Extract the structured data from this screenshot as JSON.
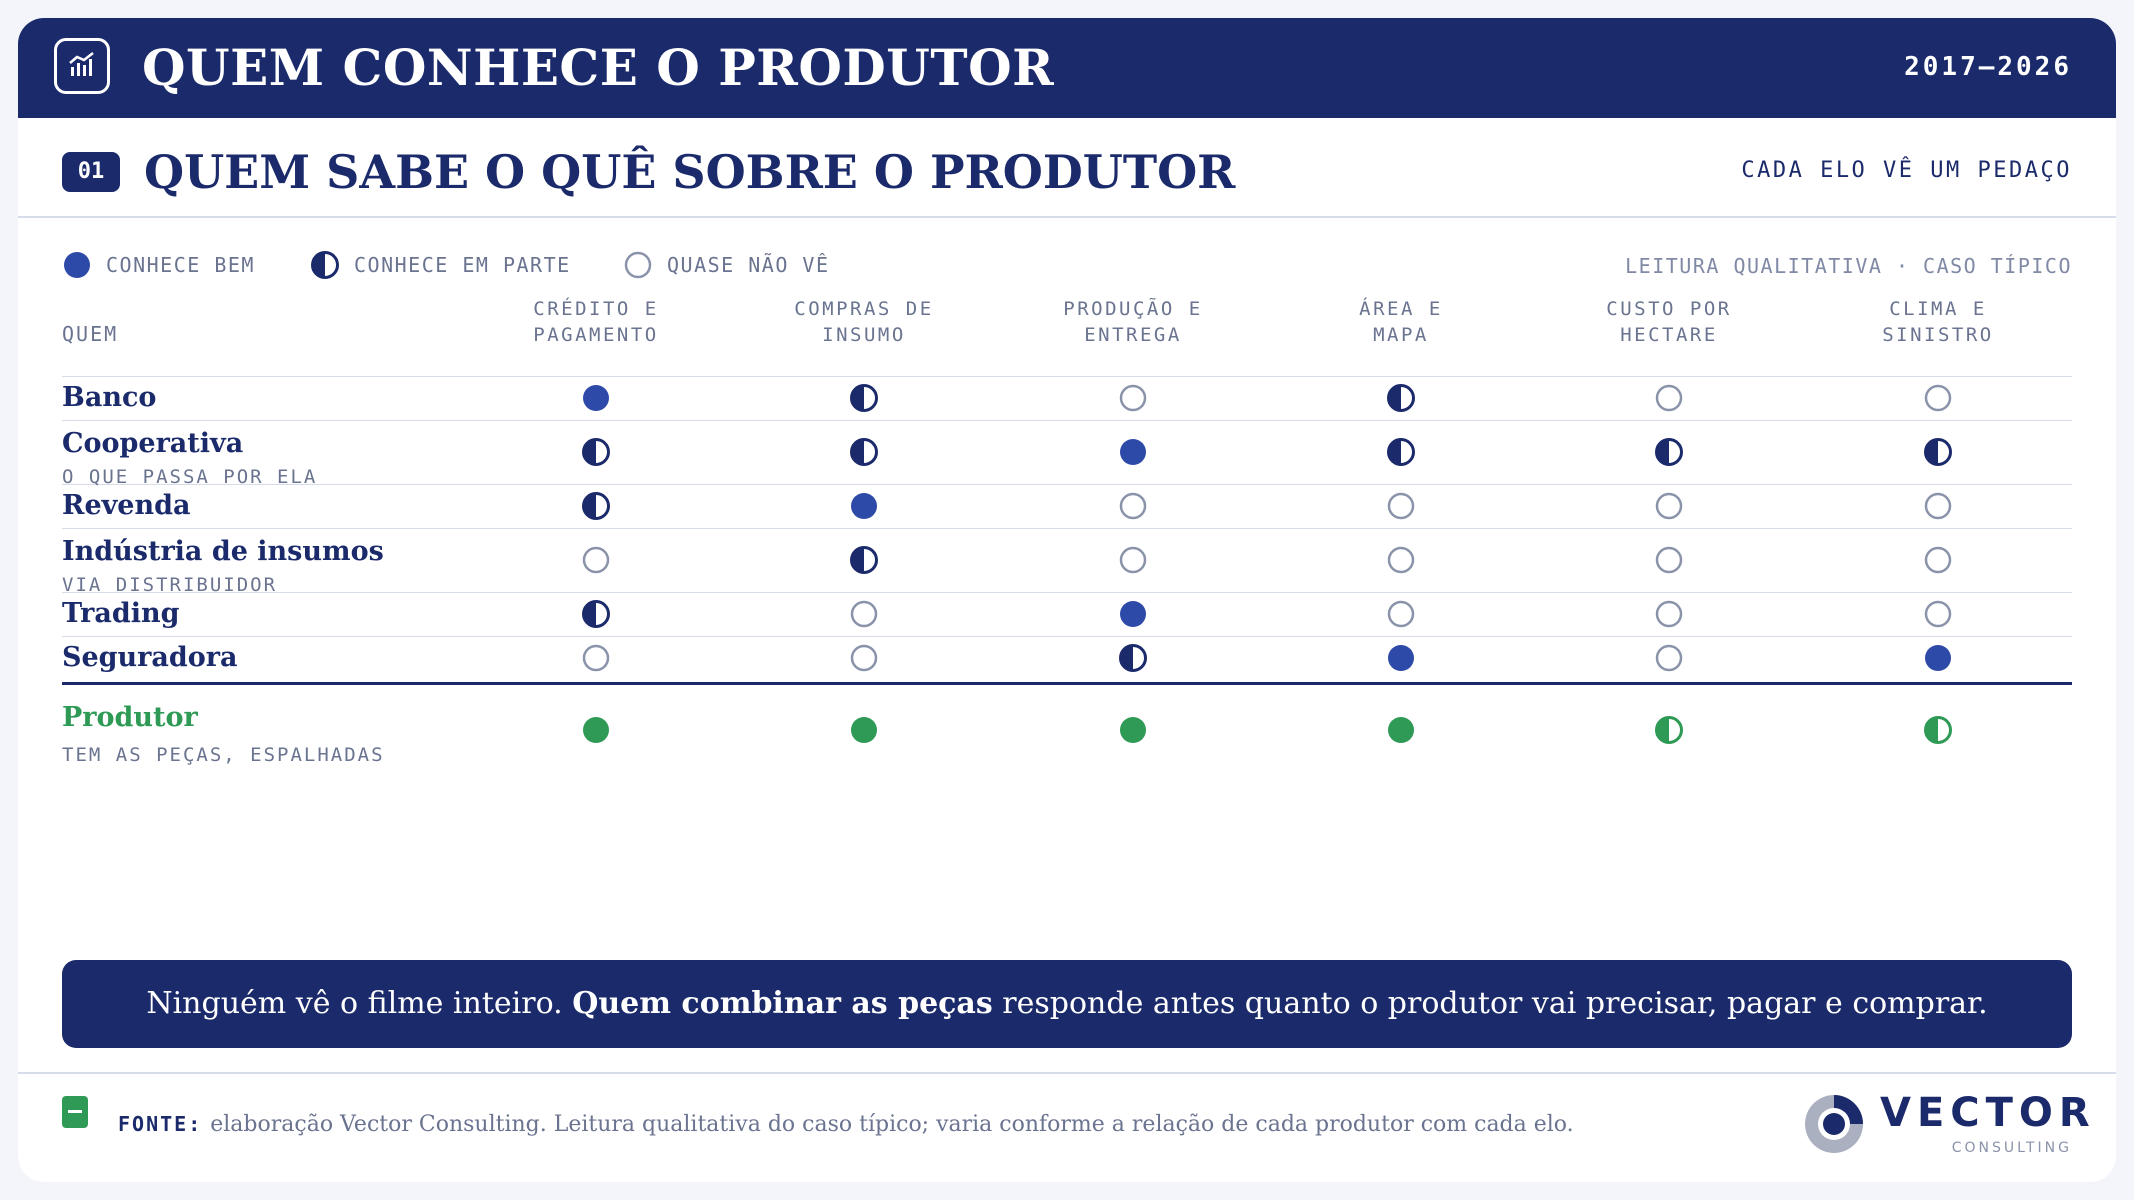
{
  "header": {
    "title": "QUEM CONHECE O PRODUTOR",
    "years": "2017–2026",
    "icon": "chart-icon"
  },
  "section": {
    "badge": "01",
    "title": "QUEM SABE O QUÊ SOBRE O PRODUTOR",
    "subtitle": "CADA ELO VÊ UM PEDAÇO"
  },
  "legend": {
    "full": "CONHECE BEM",
    "half": "CONHECE EM PARTE",
    "empty": "QUASE NÃO VÊ",
    "note": "LEITURA QUALITATIVA · CASO TÍPICO"
  },
  "table": {
    "row_header": "QUEM",
    "columns": [
      [
        "CRÉDITO E",
        "PAGAMENTO"
      ],
      [
        "COMPRAS DE",
        "INSUMO"
      ],
      [
        "PRODUÇÃO E",
        "ENTREGA"
      ],
      [
        "ÁREA E",
        "MAPA"
      ],
      [
        "CUSTO POR",
        "HECTARE"
      ],
      [
        "CLIMA E",
        "SINISTRO"
      ]
    ],
    "rows": [
      {
        "name": "Banco",
        "sub": "",
        "values": [
          "full",
          "half",
          "empty",
          "half",
          "empty",
          "empty"
        ]
      },
      {
        "name": "Cooperativa",
        "sub": "O QUE PASSA POR ELA",
        "values": [
          "half",
          "half",
          "full",
          "half",
          "half",
          "half"
        ]
      },
      {
        "name": "Revenda",
        "sub": "",
        "values": [
          "half",
          "full",
          "empty",
          "empty",
          "empty",
          "empty"
        ]
      },
      {
        "name": "Indústria de insumos",
        "sub": "VIA DISTRIBUIDOR",
        "values": [
          "empty",
          "half",
          "empty",
          "empty",
          "empty",
          "empty"
        ]
      },
      {
        "name": "Trading",
        "sub": "",
        "values": [
          "half",
          "empty",
          "full",
          "empty",
          "empty",
          "empty"
        ]
      },
      {
        "name": "Seguradora",
        "sub": "",
        "values": [
          "empty",
          "empty",
          "half",
          "full",
          "empty",
          "full"
        ]
      }
    ],
    "producer": {
      "name": "Produtor",
      "sub": "TEM AS PEÇAS, ESPALHADAS",
      "values": [
        "full",
        "full",
        "full",
        "full",
        "half",
        "half"
      ]
    }
  },
  "banner": {
    "pre": "Ninguém vê o filme inteiro. ",
    "bold": "Quem combinar as peças",
    "post": " responde antes quanto o produtor vai precisar, pagar e comprar."
  },
  "source": {
    "label": "FONTE:",
    "text": "elaboração Vector Consulting. Leitura qualitativa do caso típico; varia conforme a relação de cada produtor com cada elo."
  },
  "brand": {
    "name": "VECTOR",
    "sub": "CONSULTING"
  },
  "colors": {
    "navy": "#1b2a6b",
    "blue": "#2e4aa8",
    "green": "#2e9a55",
    "gray": "#8a93aa"
  }
}
